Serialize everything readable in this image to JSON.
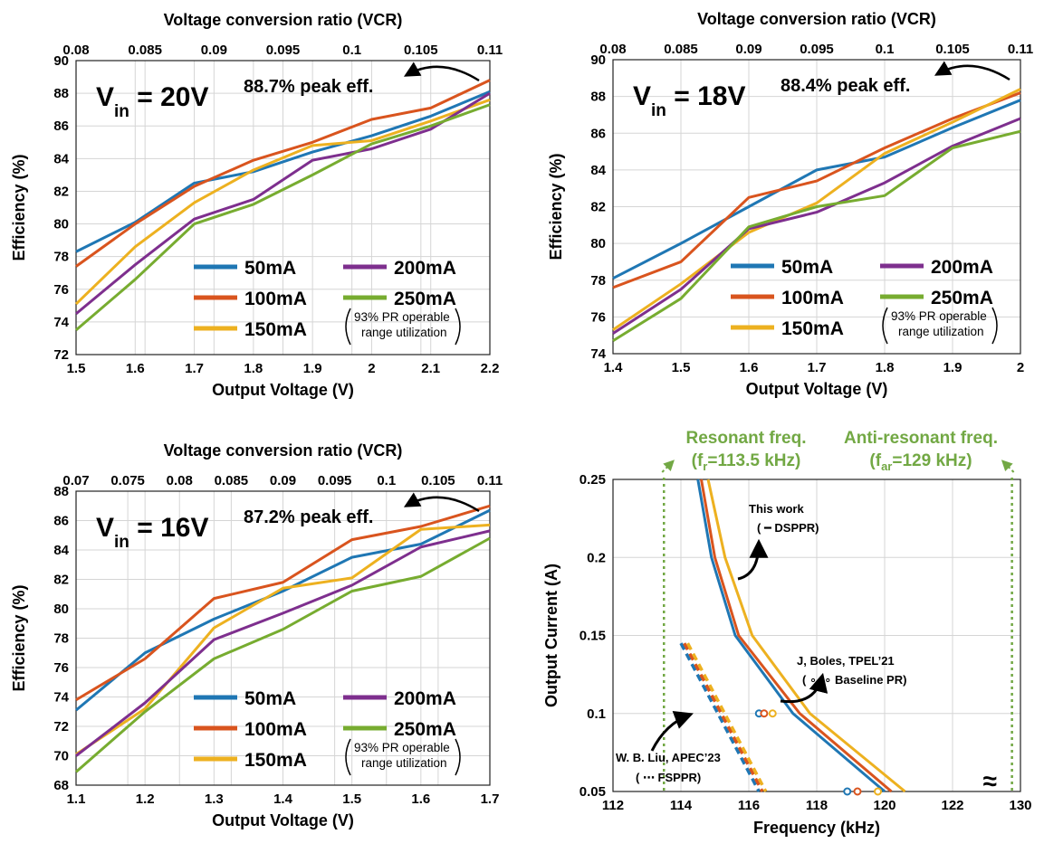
{
  "colors": {
    "50mA": "#1f77b4",
    "100mA": "#d9541e",
    "150mA": "#edb120",
    "200mA": "#7e2f8e",
    "250mA": "#77ac30",
    "grid": "#d5d5d5",
    "freq_marker": "#72a844"
  },
  "chart_data": [
    {
      "id": "vin20",
      "type": "line",
      "vin": {
        "main": "V",
        "sub": "in",
        "rest": " = 20V"
      },
      "peak_label": "88.7% peak eff.",
      "xlabel": "Output Voltage (V)",
      "ylabel": "Efficiency (%)",
      "top_label": "Voltage conversion ratio (VCR)",
      "xlim": [
        1.5,
        2.2
      ],
      "ylim": [
        72,
        90
      ],
      "xticks": [
        "1.5",
        "1.6",
        "1.7",
        "1.8",
        "1.9",
        "2",
        "2.1",
        "2.2"
      ],
      "yticks": [
        "72",
        "74",
        "76",
        "78",
        "80",
        "82",
        "84",
        "86",
        "88",
        "90"
      ],
      "top_ticks": [
        "0.08",
        "0.085",
        "0.09",
        "0.095",
        "0.1",
        "0.105",
        "0.11"
      ],
      "x": [
        1.5,
        1.6,
        1.7,
        1.8,
        1.9,
        2.0,
        2.1,
        2.2
      ],
      "series": [
        {
          "name": "50mA",
          "values": [
            78.3,
            80.1,
            82.5,
            83.2,
            84.4,
            85.4,
            86.6,
            88.1
          ]
        },
        {
          "name": "100mA",
          "values": [
            77.4,
            80.0,
            82.3,
            83.9,
            85.0,
            86.4,
            87.1,
            88.8
          ]
        },
        {
          "name": "150mA",
          "values": [
            75.1,
            78.6,
            81.3,
            83.3,
            84.8,
            85.1,
            86.3,
            87.6
          ]
        },
        {
          "name": "200mA",
          "values": [
            74.5,
            77.5,
            80.3,
            81.5,
            83.9,
            84.6,
            85.8,
            88.0
          ]
        },
        {
          "name": "250mA",
          "values": [
            73.5,
            76.6,
            80.0,
            81.2,
            83.0,
            84.9,
            86.0,
            87.3
          ]
        }
      ],
      "note": [
        "93% PR operable",
        "range utilization"
      ]
    },
    {
      "id": "vin18",
      "type": "line",
      "vin": {
        "main": "V",
        "sub": "in",
        "rest": " = 18V"
      },
      "peak_label": "88.4% peak eff.",
      "xlabel": "Output Voltage (V)",
      "ylabel": "Efficiency (%)",
      "top_label": "Voltage conversion ratio (VCR)",
      "xlim": [
        1.4,
        2.0
      ],
      "ylim": [
        74,
        90
      ],
      "xticks": [
        "1.4",
        "1.5",
        "1.6",
        "1.7",
        "1.8",
        "1.9",
        "2"
      ],
      "yticks": [
        "74",
        "76",
        "78",
        "80",
        "82",
        "84",
        "86",
        "88",
        "90"
      ],
      "top_ticks": [
        "0.08",
        "0.085",
        "0.09",
        "0.095",
        "0.1",
        "0.105",
        "0.11"
      ],
      "x": [
        1.4,
        1.5,
        1.6,
        1.7,
        1.8,
        1.9,
        2.0
      ],
      "series": [
        {
          "name": "50mA",
          "values": [
            78.1,
            80.0,
            82.0,
            84.0,
            84.7,
            86.3,
            87.8
          ]
        },
        {
          "name": "100mA",
          "values": [
            77.6,
            79.0,
            82.5,
            83.4,
            85.2,
            86.8,
            88.2
          ]
        },
        {
          "name": "150mA",
          "values": [
            75.3,
            77.8,
            80.6,
            82.2,
            84.9,
            86.6,
            88.4
          ]
        },
        {
          "name": "200mA",
          "values": [
            75.1,
            77.5,
            80.8,
            81.7,
            83.3,
            85.3,
            86.8
          ]
        },
        {
          "name": "250mA",
          "values": [
            74.7,
            77.0,
            80.9,
            82.0,
            82.6,
            85.2,
            86.1
          ]
        }
      ],
      "note": [
        "93% PR operable",
        "range utilization"
      ]
    },
    {
      "id": "vin16",
      "type": "line",
      "vin": {
        "main": "V",
        "sub": "in",
        "rest": " = 16V"
      },
      "peak_label": "87.2% peak eff.",
      "xlabel": "Output Voltage (V)",
      "ylabel": "Efficiency (%)",
      "top_label": "Voltage conversion ratio (VCR)",
      "xlim": [
        1.1,
        1.7
      ],
      "ylim": [
        68,
        88
      ],
      "xticks": [
        "1.1",
        "1.2",
        "1.3",
        "1.4",
        "1.5",
        "1.6",
        "1.7"
      ],
      "yticks": [
        "68",
        "70",
        "72",
        "74",
        "76",
        "78",
        "80",
        "82",
        "84",
        "86",
        "88"
      ],
      "top_ticks": [
        "0.07",
        "0.075",
        "0.08",
        "0.085",
        "0.09",
        "0.095",
        "0.1",
        "0.105",
        "0.11"
      ],
      "x": [
        1.1,
        1.2,
        1.3,
        1.4,
        1.5,
        1.6,
        1.7
      ],
      "series": [
        {
          "name": "50mA",
          "values": [
            73.1,
            77.0,
            79.3,
            81.2,
            83.5,
            84.4,
            86.7
          ]
        },
        {
          "name": "100mA",
          "values": [
            73.8,
            76.6,
            80.7,
            81.8,
            84.7,
            85.6,
            87.0
          ]
        },
        {
          "name": "150mA",
          "values": [
            70.1,
            73.2,
            78.7,
            81.4,
            82.1,
            85.4,
            85.7
          ]
        },
        {
          "name": "200mA",
          "values": [
            70.0,
            73.6,
            77.9,
            79.7,
            81.6,
            84.2,
            85.3
          ]
        },
        {
          "name": "250mA",
          "values": [
            68.9,
            73.0,
            76.6,
            78.6,
            81.2,
            82.2,
            84.8
          ]
        }
      ],
      "note": [
        "93% PR operable",
        "range utilization"
      ]
    },
    {
      "id": "freq",
      "type": "line",
      "xlabel": "Frequency (kHz)",
      "ylabel": "Output Current (A)",
      "xlim": [
        112,
        130
      ],
      "ylim": [
        0.05,
        0.25
      ],
      "xticks": [
        "112",
        "114",
        "116",
        "118",
        "120",
        "122",
        "130"
      ],
      "yticks": [
        "0.05",
        "0.1",
        "0.15",
        "0.2",
        "0.25"
      ],
      "axis_break": "≈",
      "resonant": {
        "title": "Resonant freq.",
        "label_pre": "(f",
        "label_sub": "r",
        "label_post": "=113.5 kHz)",
        "x": 113.5
      },
      "antiresonant": {
        "title": "Anti-resonant freq.",
        "label_pre": "(f",
        "label_sub": "ar",
        "label_post": "=129 kHz)",
        "x": 129
      },
      "this_work": {
        "label1": "This work",
        "label2": "( ━ DSPPR)",
        "series": [
          {
            "name": "50mA",
            "points": [
              [
                114.5,
                0.25
              ],
              [
                114.9,
                0.2
              ],
              [
                115.6,
                0.15
              ],
              [
                117.3,
                0.1
              ],
              [
                120.0,
                0.05
              ]
            ]
          },
          {
            "name": "100mA",
            "points": [
              [
                114.6,
                0.25
              ],
              [
                115.0,
                0.2
              ],
              [
                115.7,
                0.15
              ],
              [
                117.5,
                0.1
              ],
              [
                120.2,
                0.05
              ]
            ]
          },
          {
            "name": "150mA",
            "points": [
              [
                114.8,
                0.25
              ],
              [
                115.3,
                0.2
              ],
              [
                116.1,
                0.15
              ],
              [
                117.8,
                0.1
              ],
              [
                120.6,
                0.05
              ]
            ]
          }
        ]
      },
      "liu": {
        "label1": "W. B. Liu, APEC’23",
        "label2": "( ⋯ FSPPR)",
        "series": [
          {
            "name": "50mA",
            "points": [
              [
                114.0,
                0.145
              ],
              [
                116.3,
                0.05
              ]
            ]
          },
          {
            "name": "100mA",
            "points": [
              [
                114.1,
                0.145
              ],
              [
                116.4,
                0.05
              ]
            ]
          },
          {
            "name": "150mA",
            "points": [
              [
                114.2,
                0.145
              ],
              [
                116.5,
                0.05
              ]
            ]
          }
        ]
      },
      "boles": {
        "label1": "J, Boles, TPEL’21",
        "label2": "( ∘∘∘ Baseline PR)",
        "points": [
          {
            "name": "50mA",
            "x": 116.3,
            "y": 0.1
          },
          {
            "name": "100mA",
            "x": 116.45,
            "y": 0.1
          },
          {
            "name": "150mA",
            "x": 116.7,
            "y": 0.1
          },
          {
            "name": "50mA",
            "x": 118.9,
            "y": 0.05
          },
          {
            "name": "100mA",
            "x": 119.2,
            "y": 0.05
          },
          {
            "name": "150mA",
            "x": 119.8,
            "y": 0.05
          }
        ]
      }
    }
  ]
}
